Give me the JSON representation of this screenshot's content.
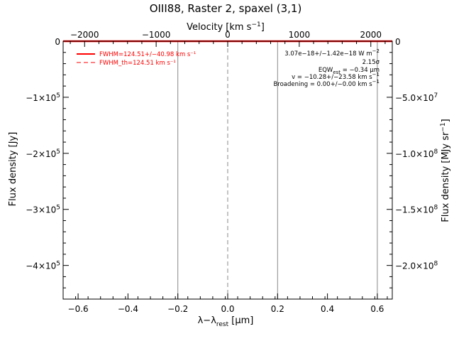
{
  "chart_data": {
    "type": "line",
    "title": "OIII88, Raster 2, spaxel (3,1)",
    "xlabel": "λ−λrest [μm]",
    "xlabel_parts": {
      "pre": "λ−λ",
      "sub": "rest",
      "post": " [μm]"
    },
    "x2label": "Velocity [km s⁻¹]",
    "x2label_parts": {
      "pre": "Velocity [km s",
      "sup": "−1",
      "post": "]"
    },
    "ylabel": "Flux density [Jy]",
    "y2label": "Flux density [MJy sr⁻¹]",
    "y2label_parts": {
      "pre": "Flux density [MJy sr",
      "sup": "−1",
      "post": "]"
    },
    "xlim": [
      -0.66,
      0.66
    ],
    "ylim": [
      -460000,
      0
    ],
    "x2lim": [
      -2300,
      2300
    ],
    "y2lim": [
      -2300000000,
      0
    ],
    "x_ticks": [
      {
        "v": -0.6,
        "label": "−0.6"
      },
      {
        "v": -0.4,
        "label": "−0.4"
      },
      {
        "v": -0.2,
        "label": "−0.2"
      },
      {
        "v": 0.0,
        "label": "0.0"
      },
      {
        "v": 0.2,
        "label": "0.2"
      },
      {
        "v": 0.4,
        "label": "0.4"
      },
      {
        "v": 0.6,
        "label": "0.6"
      }
    ],
    "x2_ticks": [
      {
        "v": -2000,
        "label": "−2000"
      },
      {
        "v": -1000,
        "label": "−1000"
      },
      {
        "v": 0,
        "label": "0"
      },
      {
        "v": 1000,
        "label": "1000"
      },
      {
        "v": 2000,
        "label": "2000"
      }
    ],
    "y_ticks": [
      {
        "v": 0,
        "base": "0",
        "exp": ""
      },
      {
        "v": -100000,
        "base": "−1×10",
        "exp": "5"
      },
      {
        "v": -200000,
        "base": "−2×10",
        "exp": "5"
      },
      {
        "v": -300000,
        "base": "−3×10",
        "exp": "5"
      },
      {
        "v": -400000,
        "base": "−4×10",
        "exp": "5"
      }
    ],
    "y2_ticks": [
      {
        "v": 0,
        "base": "0",
        "exp": ""
      },
      {
        "v": -500000000,
        "base": "−5.0×10",
        "exp": "7"
      },
      {
        "v": -1000000000,
        "base": "−1.0×10",
        "exp": "8"
      },
      {
        "v": -1500000000,
        "base": "−1.5×10",
        "exp": "8"
      },
      {
        "v": -2000000000,
        "base": "−2.0×10",
        "exp": "8"
      }
    ],
    "series": [
      {
        "name": "FWHM=124.51+/−40.98 km s⁻¹",
        "style": "solid",
        "color": "#ff0000",
        "y": 0
      },
      {
        "name": "FWHM_th=124.51 km s⁻¹",
        "style": "dashed",
        "color": "#ff0000",
        "y": 0
      }
    ],
    "legend_placement": "top-left",
    "vlines": [
      {
        "x": -0.2,
        "style": "solid",
        "color": "#888888"
      },
      {
        "x": 0.0,
        "style": "dashed",
        "color": "#888888"
      },
      {
        "x": 0.2,
        "style": "solid",
        "color": "#888888"
      },
      {
        "x": 0.6,
        "style": "solid",
        "color": "#888888"
      }
    ],
    "annotations": {
      "line1": "3.07e−18+/−1.42e−18 W m",
      "line1_sup": "−2",
      "line2": "2.15σ",
      "line3_pre": "EQW",
      "line3_sub": "est",
      "line3_post": " = −0.34 μm",
      "line4": "v = −10.28+/−23.58 km s",
      "line4_sup": "−1",
      "line5": "Broadening = 0.00+/−0.00 km s",
      "line5_sup": "−1"
    },
    "grid": false
  },
  "colors": {
    "fit": "#ff0000",
    "marker_lines": "#888888",
    "axes": "#000000"
  }
}
